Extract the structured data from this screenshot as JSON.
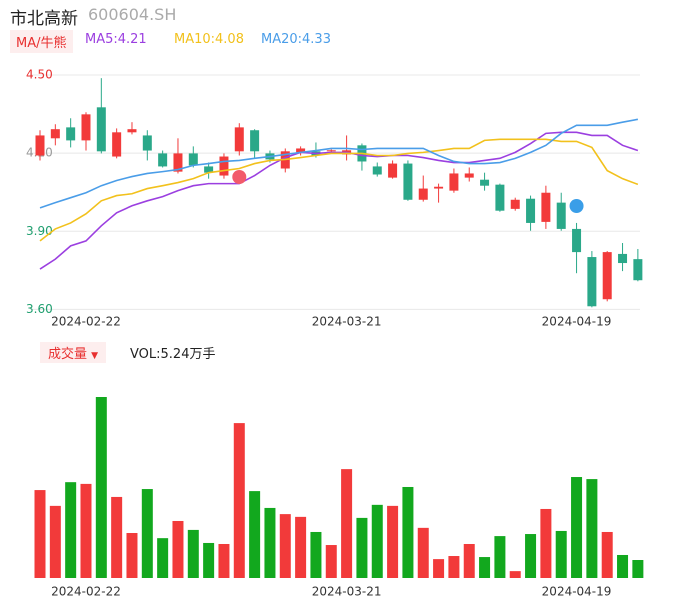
{
  "header": {
    "title": "市北高新",
    "code": "600604.SH"
  },
  "chart_data": [
    {
      "type": "candlestick",
      "tag": "MA/牛熊",
      "categories": [
        null,
        null,
        null,
        "2024-02-22",
        null,
        null,
        null,
        null,
        null,
        null,
        null,
        null,
        null,
        null,
        null,
        null,
        null,
        null,
        null,
        null,
        "2024-03-21",
        null,
        null,
        null,
        null,
        null,
        null,
        null,
        null,
        null,
        null,
        null,
        null,
        null,
        null,
        "2024-04-19",
        null,
        null,
        null,
        null
      ],
      "open": [
        4.191,
        4.257,
        4.299,
        4.249,
        4.376,
        4.187,
        4.28,
        4.268,
        4.199,
        4.129,
        4.199,
        4.149,
        4.114,
        4.207,
        4.288,
        4.199,
        4.141,
        4.203,
        4.207,
        4.207,
        4.195,
        4.23,
        4.149,
        4.106,
        4.16,
        4.021,
        4.064,
        4.056,
        4.106,
        4.098,
        4.079,
        3.986,
        4.025,
        3.936,
        4.01,
        3.909,
        3.801,
        3.639,
        3.813,
        3.793
      ],
      "high": [
        4.288,
        4.311,
        4.334,
        4.357,
        4.488,
        4.295,
        4.319,
        4.288,
        4.21,
        4.257,
        4.226,
        4.164,
        4.199,
        4.315,
        4.292,
        4.21,
        4.218,
        4.226,
        4.241,
        4.215,
        4.268,
        4.237,
        4.164,
        4.172,
        4.172,
        4.114,
        4.083,
        4.141,
        4.145,
        4.125,
        4.083,
        4.029,
        4.037,
        4.075,
        4.048,
        3.932,
        3.824,
        3.824,
        3.855,
        3.832
      ],
      "low": [
        4.172,
        4.23,
        4.222,
        4.21,
        4.199,
        4.18,
        4.272,
        4.172,
        4.145,
        4.122,
        4.145,
        4.102,
        4.102,
        4.191,
        4.18,
        4.164,
        4.126,
        4.191,
        4.183,
        4.203,
        4.172,
        4.133,
        4.11,
        4.102,
        4.017,
        4.014,
        4.01,
        4.048,
        4.091,
        4.056,
        3.975,
        3.979,
        3.902,
        3.909,
        3.902,
        3.739,
        3.608,
        3.631,
        3.747,
        3.708
      ],
      "close": [
        4.268,
        4.292,
        4.249,
        4.349,
        4.207,
        4.28,
        4.292,
        4.21,
        4.149,
        4.199,
        4.153,
        4.125,
        4.187,
        4.299,
        4.207,
        4.176,
        4.207,
        4.218,
        4.191,
        4.211,
        4.211,
        4.168,
        4.118,
        4.16,
        4.021,
        4.064,
        4.071,
        4.122,
        4.122,
        4.075,
        3.979,
        4.021,
        3.932,
        4.048,
        3.909,
        3.82,
        3.612,
        3.82,
        3.778,
        3.712
      ],
      "up_color": "#f23a3a",
      "down_color": "#2aa889",
      "series": [
        {
          "legend": "MA5:4.21",
          "color": "#9b3fe0",
          "values": [
            3.755,
            3.793,
            3.844,
            3.863,
            3.921,
            3.971,
            3.998,
            4.017,
            4.033,
            4.056,
            4.075,
            4.083,
            4.083,
            4.083,
            4.114,
            4.153,
            4.183,
            4.203,
            4.199,
            4.203,
            4.203,
            4.191,
            4.187,
            4.191,
            4.191,
            4.183,
            4.172,
            4.164,
            4.164,
            4.172,
            4.18,
            4.203,
            4.237,
            4.276,
            4.28,
            4.28,
            4.268,
            4.268,
            4.23,
            4.21
          ]
        },
        {
          "legend": "MA10:4.08",
          "color": "#f2c11c",
          "values": [
            3.863,
            3.909,
            3.932,
            3.967,
            4.017,
            4.037,
            4.044,
            4.064,
            4.075,
            4.087,
            4.102,
            4.125,
            4.133,
            4.141,
            4.16,
            4.172,
            4.176,
            4.183,
            4.191,
            4.199,
            4.199,
            4.199,
            4.191,
            4.191,
            4.199,
            4.203,
            4.21,
            4.218,
            4.218,
            4.249,
            4.253,
            4.253,
            4.253,
            4.253,
            4.245,
            4.245,
            4.222,
            4.133,
            4.102,
            4.08
          ]
        },
        {
          "legend": "MA20:4.33",
          "color": "#4a9de8",
          "values": [
            3.99,
            4.01,
            4.029,
            4.048,
            4.075,
            4.095,
            4.11,
            4.122,
            4.129,
            4.137,
            4.153,
            4.16,
            4.168,
            4.172,
            4.18,
            4.187,
            4.195,
            4.203,
            4.21,
            4.218,
            4.218,
            4.214,
            4.218,
            4.218,
            4.218,
            4.218,
            4.191,
            4.168,
            4.16,
            4.16,
            4.164,
            4.18,
            4.203,
            4.23,
            4.276,
            4.307,
            4.307,
            4.307,
            4.319,
            4.33
          ]
        }
      ],
      "ylim": [
        3.59,
        4.55
      ],
      "yticks": [
        {
          "value": 4.5,
          "label": "4.50"
        },
        {
          "value": 4.2,
          "label": "4.20"
        },
        {
          "value": 3.9,
          "label": "3.90"
        },
        {
          "value": 3.6,
          "label": "3.60"
        }
      ],
      "ytick_colors": [
        "#e83030",
        "#999999",
        "#1e9e6e",
        "#1e9e6e"
      ],
      "grid": true
    },
    {
      "type": "bar",
      "title": "成交量",
      "legend": "VOL:5.24万手",
      "categories": [
        null,
        null,
        null,
        "2024-02-22",
        null,
        null,
        null,
        null,
        null,
        null,
        null,
        null,
        null,
        null,
        null,
        null,
        null,
        null,
        null,
        null,
        "2024-03-21",
        null,
        null,
        null,
        null,
        null,
        null,
        null,
        null,
        null,
        null,
        null,
        null,
        null,
        null,
        "2024-04-19",
        null,
        null,
        null,
        null
      ],
      "values": [
        25.6,
        21.0,
        27.9,
        27.4,
        52.7,
        23.6,
        13.1,
        25.9,
        11.6,
        16.6,
        14.0,
        10.2,
        9.9,
        45.1,
        25.3,
        20.4,
        18.6,
        17.8,
        13.4,
        9.6,
        31.7,
        17.5,
        21.3,
        21.0,
        26.5,
        14.6,
        5.5,
        6.4,
        9.9,
        6.1,
        12.2,
        2.0,
        12.8,
        20.1,
        13.7,
        29.4,
        28.8,
        13.4,
        6.7,
        5.24
      ],
      "up_color": "#f23a3a",
      "down_color": "#12a81e",
      "ylim": [
        0,
        52.7
      ]
    }
  ]
}
